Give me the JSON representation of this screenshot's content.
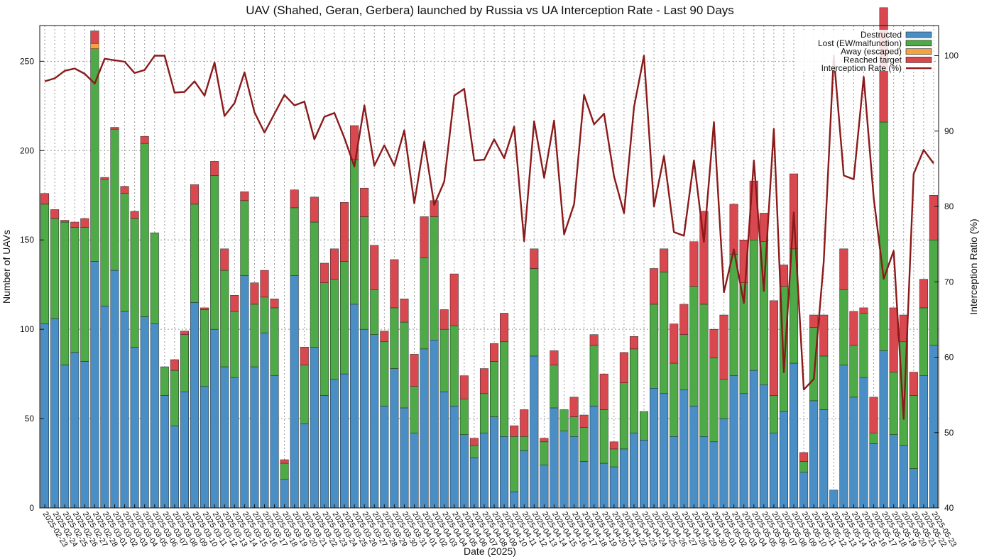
{
  "chart_data": {
    "type": "bar",
    "stacked": true,
    "title": "UAV (Shahed, Geran, Gerbera) launched by Russia vs UA Interception Rate - Last 90 Days",
    "xlabel": "Date (2025)",
    "ylabel": "Number of UAVs",
    "y2label": "Interception Ratio (%)",
    "ylim": [
      0,
      270
    ],
    "y2lim": [
      40,
      104
    ],
    "yticks": [
      0,
      50,
      100,
      150,
      200,
      250
    ],
    "y2ticks": [
      40,
      50,
      60,
      70,
      80,
      90,
      100
    ],
    "grid": true,
    "legend_position": "top-right",
    "colors": {
      "destructed": "#4a8ec6",
      "lost": "#4daa46",
      "away": "#f4a340",
      "reached": "#d9484f",
      "rate": "#8b1a1a"
    },
    "categories": [
      "2025-02-23",
      "2025-02-24",
      "2025-02-25",
      "2025-02-26",
      "2025-02-27",
      "2025-02-28",
      "2025-03-01",
      "2025-03-02",
      "2025-03-03",
      "2025-03-04",
      "2025-03-05",
      "2025-03-06",
      "2025-03-07",
      "2025-03-08",
      "2025-03-09",
      "2025-03-10",
      "2025-03-11",
      "2025-03-12",
      "2025-03-13",
      "2025-03-14",
      "2025-03-15",
      "2025-03-16",
      "2025-03-17",
      "2025-03-18",
      "2025-03-19",
      "2025-03-20",
      "2025-03-21",
      "2025-03-22",
      "2025-03-23",
      "2025-03-24",
      "2025-03-25",
      "2025-03-26",
      "2025-03-27",
      "2025-03-28",
      "2025-03-29",
      "2025-03-30",
      "2025-03-31",
      "2025-04-01",
      "2025-04-02",
      "2025-04-03",
      "2025-04-04",
      "2025-04-05",
      "2025-04-06",
      "2025-04-07",
      "2025-04-08",
      "2025-04-09",
      "2025-04-10",
      "2025-04-11",
      "2025-04-12",
      "2025-04-13",
      "2025-04-14",
      "2025-04-15",
      "2025-04-16",
      "2025-04-17",
      "2025-04-18",
      "2025-04-19",
      "2025-04-20",
      "2025-04-21",
      "2025-04-22",
      "2025-04-23",
      "2025-04-24",
      "2025-04-25",
      "2025-04-26",
      "2025-04-27",
      "2025-04-28",
      "2025-04-29",
      "2025-04-30",
      "2025-05-01",
      "2025-05-02",
      "2025-05-03",
      "2025-05-04",
      "2025-05-05",
      "2025-05-06",
      "2025-05-07",
      "2025-05-08",
      "2025-05-09",
      "2025-05-10",
      "2025-05-11",
      "2025-05-12",
      "2025-05-13",
      "2025-05-14",
      "2025-05-15",
      "2025-05-16",
      "2025-05-17",
      "2025-05-18",
      "2025-05-19",
      "2025-05-20",
      "2025-05-21",
      "2025-05-22",
      "2025-05-23"
    ],
    "series": [
      {
        "name": "Destructed",
        "key": "destructed",
        "values": [
          103,
          106,
          80,
          87,
          82,
          138,
          113,
          133,
          110,
          90,
          107,
          103,
          63,
          46,
          65,
          115,
          68,
          100,
          79,
          73,
          130,
          79,
          98,
          74,
          16,
          130,
          47,
          90,
          63,
          72,
          75,
          114,
          100,
          97,
          57,
          78,
          56,
          42,
          89,
          94,
          65,
          57,
          41,
          28,
          42,
          51,
          40,
          9,
          32,
          85,
          24,
          56,
          43,
          40,
          26,
          57,
          25,
          23,
          33,
          42,
          38,
          67,
          64,
          40,
          66,
          57,
          40,
          37,
          50,
          74,
          64,
          77,
          69,
          42,
          54,
          81,
          20,
          60,
          55,
          10,
          80,
          62,
          73,
          36,
          88,
          41,
          35,
          22,
          74,
          91
        ]
      },
      {
        "name": "Lost (EW/malfunction)",
        "key": "lost",
        "values": [
          67,
          56,
          80,
          70,
          75,
          119,
          71,
          79,
          66,
          72,
          97,
          51,
          16,
          31,
          32,
          55,
          43,
          86,
          54,
          37,
          42,
          35,
          20,
          38,
          9,
          38,
          33,
          70,
          63,
          56,
          63,
          81,
          63,
          25,
          36,
          34,
          48,
          26,
          51,
          69,
          35,
          45,
          20,
          7,
          22,
          31,
          53,
          31,
          8,
          49,
          13,
          24,
          12,
          11,
          19,
          34,
          30,
          10,
          37,
          47,
          16,
          47,
          68,
          41,
          31,
          67,
          74,
          47,
          22,
          68,
          62,
          73,
          80,
          21,
          70,
          64,
          6,
          41,
          30,
          0,
          42,
          29,
          36,
          6,
          128,
          35,
          58,
          41,
          38,
          59
        ]
      },
      {
        "name": "Away (escaped)",
        "key": "away",
        "values": [
          0,
          0,
          0,
          0,
          0,
          3,
          0,
          0,
          0,
          0,
          0,
          0,
          0,
          0,
          0,
          0,
          0,
          0,
          0,
          0,
          0,
          0,
          0,
          0,
          0,
          0,
          0,
          0,
          0,
          0,
          0,
          0,
          0,
          0,
          0,
          0,
          0,
          0,
          0,
          0,
          0,
          0,
          0,
          0,
          0,
          0,
          0,
          0,
          0,
          0,
          0,
          0,
          0,
          0,
          0,
          0,
          0,
          0,
          0,
          0,
          0,
          0,
          0,
          0,
          0,
          0,
          0,
          0,
          0,
          0,
          0,
          0,
          0,
          0,
          0,
          0,
          0,
          0,
          0,
          0,
          0,
          0,
          0,
          0,
          0,
          0,
          0,
          0,
          0,
          0
        ]
      },
      {
        "name": "Reached target",
        "key": "reached",
        "values": [
          6,
          5,
          1,
          3,
          5,
          7,
          1,
          1,
          4,
          4,
          4,
          0,
          0,
          6,
          2,
          11,
          1,
          8,
          12,
          9,
          5,
          12,
          15,
          5,
          2,
          10,
          10,
          14,
          11,
          17,
          33,
          19,
          16,
          25,
          6,
          27,
          13,
          18,
          23,
          9,
          11,
          29,
          13,
          4,
          14,
          10,
          16,
          6,
          15,
          11,
          2,
          8,
          0,
          11,
          7,
          6,
          20,
          4,
          17,
          7,
          0,
          20,
          13,
          22,
          17,
          25,
          52,
          16,
          36,
          28,
          24,
          33,
          16,
          53,
          12,
          42,
          5,
          7,
          23,
          0,
          23,
          19,
          3,
          20,
          64,
          36,
          15,
          13,
          16,
          25
        ]
      },
      {
        "name": "Interception Rate (%)",
        "key": "rate",
        "type": "line",
        "axis": "y2",
        "values": [
          96.6,
          97.0,
          98.0,
          98.3,
          97.6,
          96.3,
          99.6,
          99.4,
          99.2,
          97.7,
          98.1,
          100.0,
          100.0,
          95.1,
          95.2,
          96.6,
          94.7,
          99.1,
          92.0,
          93.7,
          97.8,
          92.5,
          89.8,
          92.3,
          94.8,
          93.4,
          93.9,
          88.9,
          91.9,
          92.4,
          89.1,
          85.3,
          93.4,
          85.4,
          88.1,
          85.4,
          90.1,
          80.4,
          88.6,
          80.2,
          83.3,
          94.7,
          95.6,
          86.1,
          86.2,
          88.9,
          86.4,
          90.6,
          75.4,
          91.3,
          83.8,
          91.4,
          76.3,
          80.3,
          94.8,
          90.9,
          92.3,
          84.0,
          79.1,
          93.2,
          100.0,
          80.0,
          86.7,
          76.6,
          76.1,
          86.1,
          75.3,
          91.2,
          68.6,
          74.3,
          67.2,
          86.1,
          68.8,
          90.3,
          58.0,
          79.2,
          55.7,
          57.1,
          72.7,
          100.0,
          84.1,
          83.6,
          97.2,
          81.1,
          70.4,
          74.1,
          51.8,
          84.3,
          87.5,
          85.7
        ]
      }
    ],
    "x_tick_labels": [
      "2025-02-23",
      "2025-02-24",
      "2025-02-25",
      "2025-02-26",
      "2025-02-27",
      "2025-02-28",
      "2025-03-01",
      "2025-03-02",
      "2025-03-03",
      "2025-03-04",
      "2025-03-05",
      "2025-03-06",
      "2025-03-07",
      "2025-03-08",
      "2025-03-09",
      "2025-03-10",
      "2025-03-11",
      "2025-03-12",
      "2025-03-13",
      "2025-03-14",
      "2025-03-15",
      "2025-03-16",
      "2025-03-17",
      "2025-03-18",
      "2025-03-19",
      "2025-03-20",
      "2025-03-21",
      "2025-03-22",
      "2025-03-23",
      "2025-03-24",
      "2025-03-25",
      "2025-03-26",
      "2025-03-27",
      "2025-03-28",
      "2025-03-29",
      "2025-03-30",
      "2025-03-31",
      "2025-04-01",
      "2025-04-02",
      "2025-04-03",
      "2025-04-04",
      "2025-04-05",
      "2025-04-06",
      "2025-04-07",
      "2025-04-08",
      "2025-04-09",
      "2025-04-10",
      "2025-04-11",
      "2025-04-12",
      "2025-04-13",
      "2025-04-14",
      "2025-04-15",
      "2025-04-16",
      "2025-04-17",
      "2025-04-18",
      "2025-04-19",
      "2025-04-20",
      "2025-04-21",
      "2025-04-22",
      "2025-04-23",
      "2025-04-24",
      "2025-04-25",
      "2025-04-26",
      "2025-04-27",
      "2025-04-28",
      "2025-04-29",
      "2025-04-30",
      "2025-05-01",
      "2025-05-02",
      "2025-05-03",
      "2025-05-04",
      "2025-05-05",
      "2025-05-06",
      "2025-05-07",
      "2025-05-08",
      "2025-05-09",
      "2025-05-10",
      "2025-05-11",
      "2025-05-12",
      "2025-05-13",
      "2025-05-14",
      "2025-05-15",
      "2025-05-16",
      "2025-05-17",
      "2025-05-18",
      "2025-05-19",
      "2025-05-20",
      "2025-05-21",
      "2025-05-22",
      "2025-05-23"
    ]
  }
}
